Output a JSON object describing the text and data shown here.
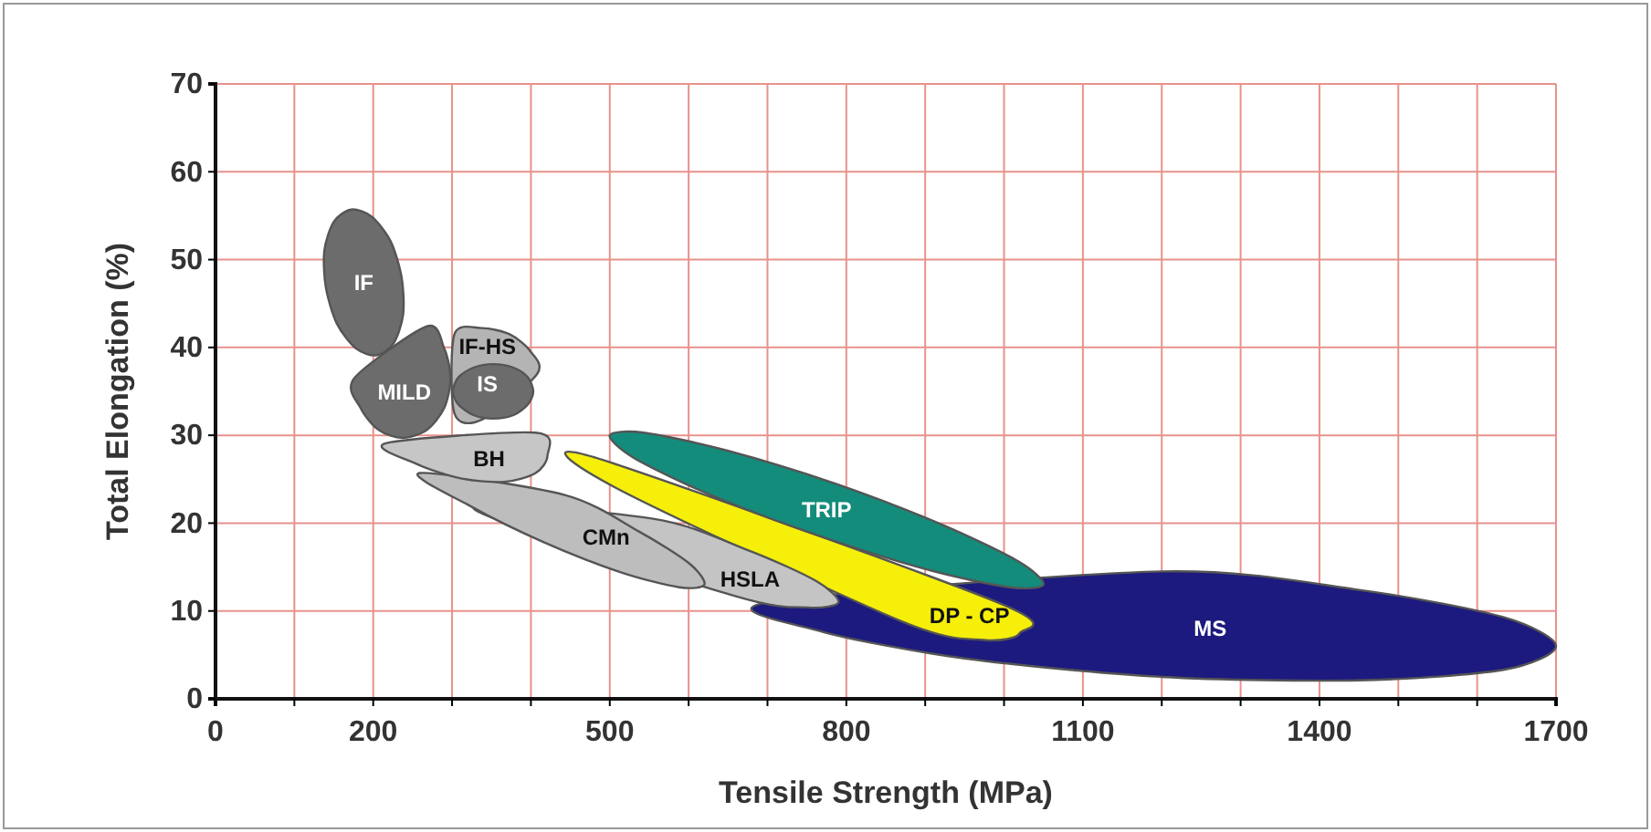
{
  "chart_data": {
    "type": "area",
    "xlabel": "Tensile Strength (MPa)",
    "ylabel": "Total Elongation (%)",
    "xlim": [
      0,
      1700
    ],
    "ylim": [
      0,
      70
    ],
    "xticks": [
      0,
      {
        "value": 100,
        "label": null
      },
      200,
      {
        "value": 300,
        "label": null
      },
      {
        "value": 400,
        "label": null
      },
      500,
      {
        "value": 600,
        "label": null
      },
      {
        "value": 700,
        "label": null
      },
      800,
      {
        "value": 900,
        "label": null
      },
      {
        "value": 1000,
        "label": null
      },
      1100,
      {
        "value": 1200,
        "label": null
      },
      {
        "value": 1300,
        "label": null
      },
      1400,
      {
        "value": 1500,
        "label": null
      },
      {
        "value": 1600,
        "label": null
      },
      1700
    ],
    "yticks": [
      0,
      10,
      20,
      30,
      40,
      50,
      60,
      70
    ],
    "grid": true,
    "marker": "none",
    "series": [
      {
        "name": "MS",
        "color": "#1c1a7e",
        "x": [
          1700,
          1633,
          1450,
          1200,
          700,
          767,
          950,
          1200,
          1450,
          1633
        ],
        "values": [
          6.0,
          9.3,
          12.4,
          14.5,
          11.0,
          7.7,
          4.6,
          2.5,
          2.1,
          3.3
        ]
      },
      {
        "name": "DP - CP",
        "color": "#f5ef0a",
        "x": [
          1020,
          974,
          868,
          506,
          480,
          994
        ],
        "values": [
          7.5,
          6.7,
          8.9,
          24.1,
          27.5,
          10.9
        ]
      },
      {
        "name": "TRIP",
        "color": "#138c7c",
        "x": [
          1050,
          1007,
          903,
          764,
          628,
          531,
          500,
          543,
          647,
          786,
          922,
          1019
        ],
        "values": [
          13.0,
          12.7,
          14.7,
          18.6,
          23.2,
          27.4,
          30.0,
          30.3,
          28.3,
          24.5,
          19.8,
          15.6
        ]
      },
      {
        "name": "HSLA",
        "color": "#c4c4c4",
        "x": [
          790,
          752,
          659,
          328,
          555,
          676,
          762
        ],
        "values": [
          11.0,
          10.4,
          11.7,
          21.6,
          20.5,
          16.9,
          13.4
        ]
      },
      {
        "name": "CMn",
        "color": "#bdbdbd",
        "x": [
          620,
          588,
          514,
          417,
          324,
          259,
          443,
          536,
          601
        ],
        "values": [
          13.0,
          12.7,
          14.4,
          17.8,
          21.9,
          25.7,
          23.2,
          19.1,
          15.4
        ]
      },
      {
        "name": "BH",
        "color": "#c6c6c6",
        "x": [
          421,
          406,
          216,
          256,
          311,
          366,
          406
        ],
        "values": [
          27.7,
          30.3,
          29.1,
          26.7,
          25.1,
          24.7,
          25.7
        ]
      },
      {
        "name": "IF-HS",
        "color": "#b4b4b4",
        "x": [
          408,
          399,
          373,
          338,
          303,
          303,
          338
        ],
        "values": [
          37.0,
          39.6,
          41.5,
          42.2,
          41.5,
          32.5,
          31.8
        ]
      },
      {
        "name": "IS",
        "color": "#6c6c6c",
        "x": [
          403,
          396,
          378,
          352,
          327,
          308,
          301,
          308,
          327,
          352,
          378,
          396
        ],
        "values": [
          35.0,
          36.6,
          37.7,
          38.1,
          37.7,
          36.6,
          35.0,
          33.5,
          32.3,
          31.9,
          32.3,
          33.5
        ]
      },
      {
        "name": "MILD",
        "color": "#6c6c6c",
        "x": [
          298,
          290,
          268,
          176,
          184,
          207,
          237,
          268,
          290
        ],
        "values": [
          36.5,
          39.9,
          42.4,
          36.5,
          33.1,
          30.6,
          29.7,
          30.6,
          33.1
        ]
      },
      {
        "name": "IF",
        "color": "#6c6c6c",
        "x": [
          204,
          226,
          238,
          236,
          222,
          198,
          172,
          150,
          138,
          140,
          154,
          178
        ],
        "values": [
          39.1,
          40.5,
          43.8,
          48.0,
          52.1,
          54.9,
          55.7,
          54.3,
          51.0,
          46.8,
          42.7,
          39.9
        ]
      }
    ]
  }
}
